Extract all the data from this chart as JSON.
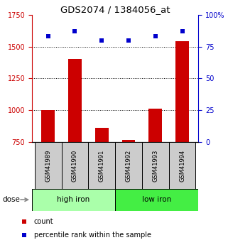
{
  "title": "GDS2074 / 1384056_at",
  "categories": [
    "GSM41989",
    "GSM41990",
    "GSM41991",
    "GSM41992",
    "GSM41993",
    "GSM41994"
  ],
  "bar_values": [
    1000,
    1400,
    860,
    770,
    1010,
    1540
  ],
  "scatter_values": [
    83,
    87,
    80,
    80,
    83,
    87
  ],
  "bar_color": "#cc0000",
  "scatter_color": "#0000cc",
  "ylim_left": [
    750,
    1750
  ],
  "ylim_right": [
    0,
    100
  ],
  "yticks_left": [
    750,
    1000,
    1250,
    1500,
    1750
  ],
  "yticks_left_labels": [
    "750",
    "1000",
    "1250",
    "1500",
    "1750"
  ],
  "yticks_right": [
    0,
    25,
    50,
    75,
    100
  ],
  "ytick_labels_right": [
    "0",
    "25",
    "50",
    "75",
    "100%"
  ],
  "hlines": [
    1000,
    1250,
    1500
  ],
  "groups": [
    {
      "label": "high iron",
      "span": [
        0,
        3
      ],
      "color": "#aaffaa"
    },
    {
      "label": "low iron",
      "span": [
        3,
        6
      ],
      "color": "#44ee44"
    }
  ],
  "dose_label": "dose",
  "legend_count": "count",
  "legend_percentile": "percentile rank within the sample",
  "left_tick_color": "#cc0000",
  "right_tick_color": "#0000cc",
  "label_box_color": "#cccccc",
  "bar_width": 0.5
}
